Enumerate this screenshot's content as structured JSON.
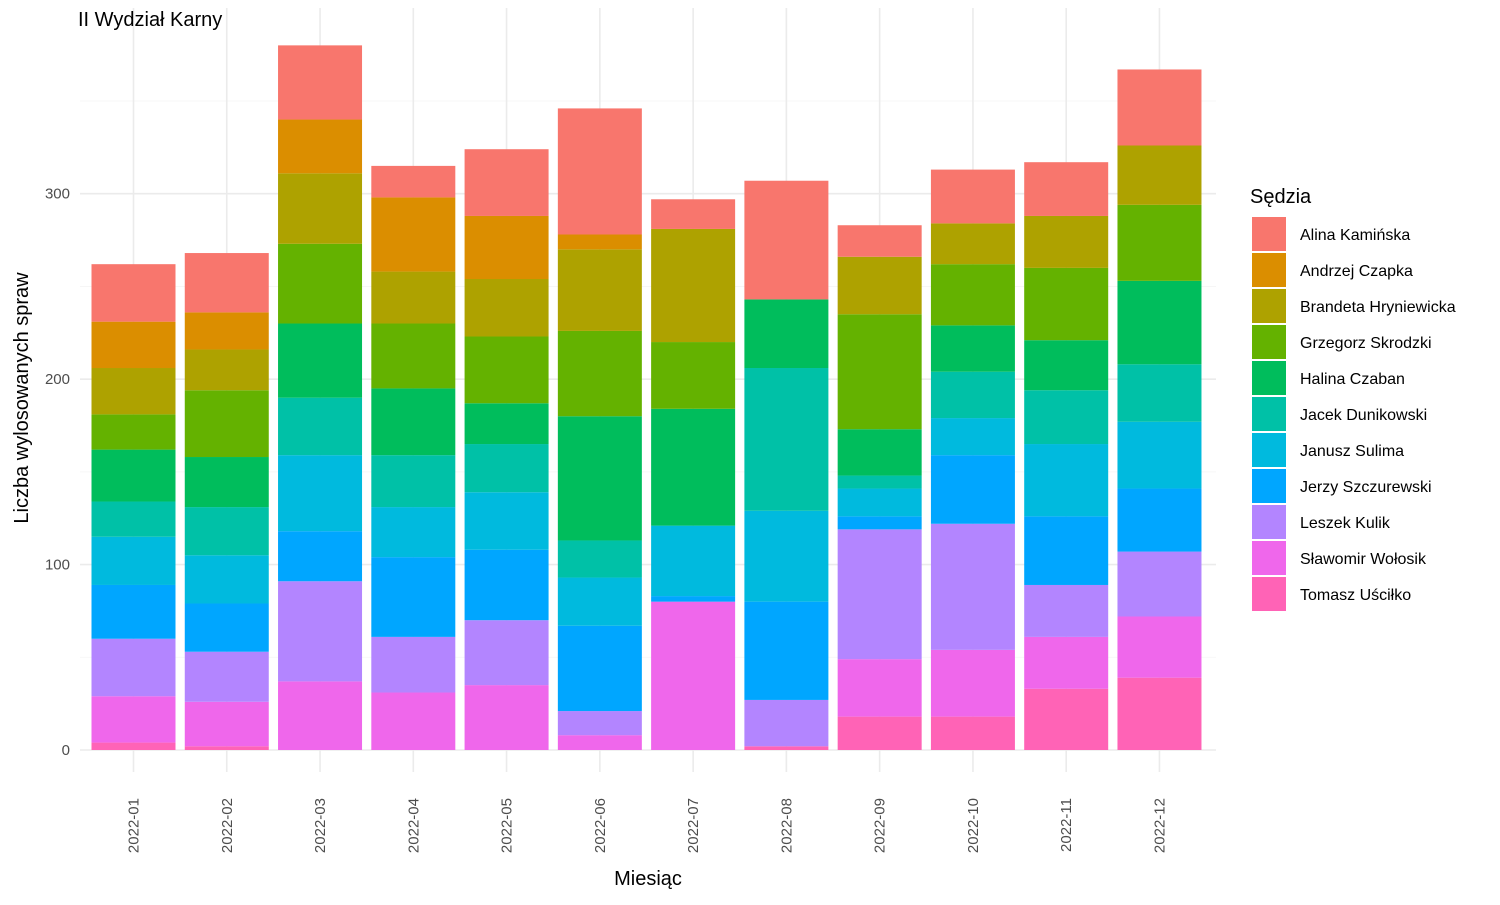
{
  "chart_data": {
    "type": "bar",
    "stacked": true,
    "title": "II Wydział Karny",
    "xlabel": "Miesiąc",
    "ylabel": "Liczba wylosowanych spraw",
    "ylim": [
      0,
      380
    ],
    "y_ticks": [
      0,
      100,
      200,
      300
    ],
    "grid": true,
    "legend_title": "Sędzia",
    "legend_position": "right",
    "categories": [
      "2022-01",
      "2022-02",
      "2022-03",
      "2022-04",
      "2022-05",
      "2022-06",
      "2022-07",
      "2022-08",
      "2022-09",
      "2022-10",
      "2022-11",
      "2022-12"
    ],
    "series": [
      {
        "name": "Alina Kamińska",
        "color": "#F8766D",
        "values": [
          31,
          32,
          40,
          17,
          36,
          68,
          16,
          64,
          17,
          29,
          29,
          41
        ]
      },
      {
        "name": "Andrzej Czapka",
        "color": "#DB8E00",
        "values": [
          25,
          20,
          29,
          40,
          34,
          8,
          0,
          0,
          0,
          0,
          0,
          0
        ]
      },
      {
        "name": "Brandeta Hryniewicka",
        "color": "#AEA200",
        "values": [
          25,
          22,
          38,
          28,
          31,
          44,
          61,
          0,
          31,
          22,
          28,
          32
        ]
      },
      {
        "name": "Grzegorz Skrodzki",
        "color": "#64B200",
        "values": [
          19,
          36,
          43,
          35,
          36,
          46,
          36,
          0,
          62,
          33,
          39,
          41
        ]
      },
      {
        "name": "Halina Czaban",
        "color": "#00BD5C",
        "values": [
          28,
          27,
          40,
          36,
          22,
          67,
          63,
          37,
          25,
          25,
          27,
          45
        ]
      },
      {
        "name": "Jacek Dunikowski",
        "color": "#00C1A7",
        "values": [
          19,
          26,
          31,
          28,
          26,
          20,
          0,
          77,
          7,
          25,
          29,
          31
        ]
      },
      {
        "name": "Janusz Sulima",
        "color": "#00BADE",
        "values": [
          26,
          26,
          41,
          27,
          31,
          26,
          38,
          49,
          15,
          20,
          39,
          36
        ]
      },
      {
        "name": "Jerzy Szczurewski",
        "color": "#00A6FF",
        "values": [
          29,
          26,
          27,
          43,
          38,
          46,
          3,
          53,
          7,
          37,
          37,
          34
        ]
      },
      {
        "name": "Leszek Kulik",
        "color": "#B385FF",
        "values": [
          31,
          27,
          54,
          30,
          35,
          13,
          0,
          25,
          70,
          68,
          28,
          35
        ]
      },
      {
        "name": "Sławomir Wołosik",
        "color": "#EF67EB",
        "values": [
          25,
          24,
          37,
          31,
          35,
          8,
          80,
          0,
          31,
          36,
          28,
          33
        ]
      },
      {
        "name": "Tomasz Uściłko",
        "color": "#FF63B6",
        "values": [
          4,
          2,
          0,
          0,
          0,
          0,
          0,
          2,
          18,
          18,
          33,
          39
        ]
      }
    ]
  }
}
